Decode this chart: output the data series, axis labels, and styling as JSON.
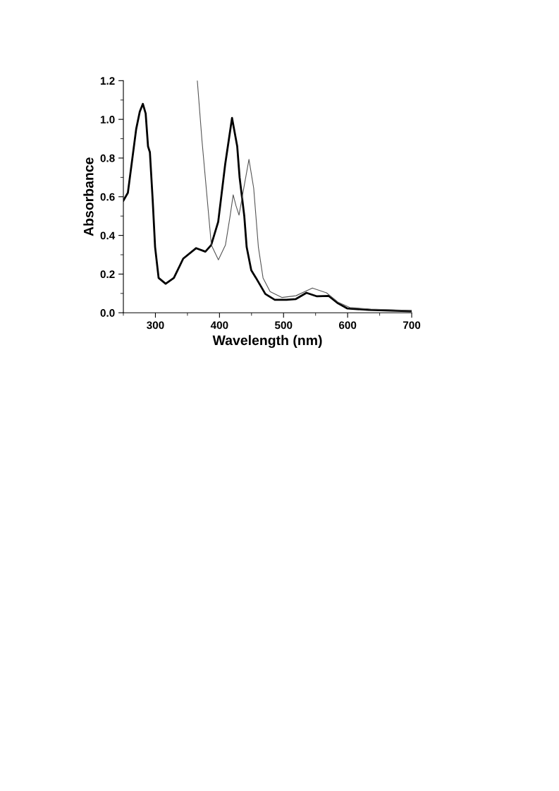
{
  "chart_data": {
    "type": "line",
    "xlabel": "Wavelength (nm)",
    "ylabel": "Absorbance",
    "xlim": [
      250,
      700
    ],
    "ylim": [
      0.0,
      1.2
    ],
    "xticks": [
      {
        "value": 250,
        "label": null
      },
      300,
      {
        "value": 350,
        "label": null
      },
      400,
      {
        "value": 450,
        "label": null
      },
      500,
      {
        "value": 550,
        "label": null
      },
      600,
      {
        "value": 650,
        "label": null
      },
      700
    ],
    "yticks": [
      {
        "value": 0.0,
        "label": "0.0"
      },
      {
        "value": 0.1,
        "label": null
      },
      0.2,
      {
        "value": 0.3,
        "label": null
      },
      0.4,
      {
        "value": 0.5,
        "label": null
      },
      0.6,
      {
        "value": 0.7,
        "label": null
      },
      0.8,
      {
        "value": 0.9,
        "label": null
      },
      {
        "value": 1.0,
        "label": "1.0"
      },
      {
        "value": 1.1,
        "label": null
      },
      1.2
    ],
    "grid": false,
    "legend": false,
    "marker": "none",
    "line_style": "solid",
    "series": [
      {
        "color": "#000000",
        "x": [
          250,
          257,
          270,
          275.6,
          280.4,
          284.8,
          288.5,
          291.4,
          295.8,
          299.5,
          305,
          316,
          328.8,
          343.4,
          363.6,
          378,
          387,
          398,
          409,
          419.6,
          427.7,
          431.4,
          438.7,
          442.4,
          449.6,
          457,
          471.6,
          486.3,
          504.6,
          519.2,
          535.7,
          552.2,
          570.5,
          585,
          599.7,
          632.7,
          700
        ],
        "values": [
          0.58,
          0.62,
          0.95,
          1.04,
          1.08,
          1.03,
          0.86,
          0.83,
          0.58,
          0.34,
          0.18,
          0.15,
          0.18,
          0.28,
          0.334,
          0.316,
          0.35,
          0.47,
          0.77,
          1.007,
          0.86,
          0.7,
          0.5,
          0.34,
          0.22,
          0.18,
          0.097,
          0.067,
          0.067,
          0.071,
          0.103,
          0.085,
          0.087,
          0.049,
          0.022,
          0.015,
          0.008
        ]
      },
      {
        "color": "#555555",
        "x": [
          365.4,
          372.7,
          380,
          387.3,
          398.3,
          409.3,
          416.6,
          421.4,
          425.8,
          430.5,
          438.6,
          446,
          453.4,
          460.7,
          468,
          479,
          497.3,
          519.3,
          545,
          567,
          585,
          603.4,
          636,
          700
        ],
        "values": [
          1.2,
          0.89,
          0.62,
          0.35,
          0.274,
          0.35,
          0.5,
          0.61,
          0.553,
          0.505,
          0.657,
          0.793,
          0.644,
          0.34,
          0.18,
          0.109,
          0.079,
          0.088,
          0.128,
          0.103,
          0.055,
          0.027,
          0.019,
          0.012
        ]
      }
    ]
  }
}
